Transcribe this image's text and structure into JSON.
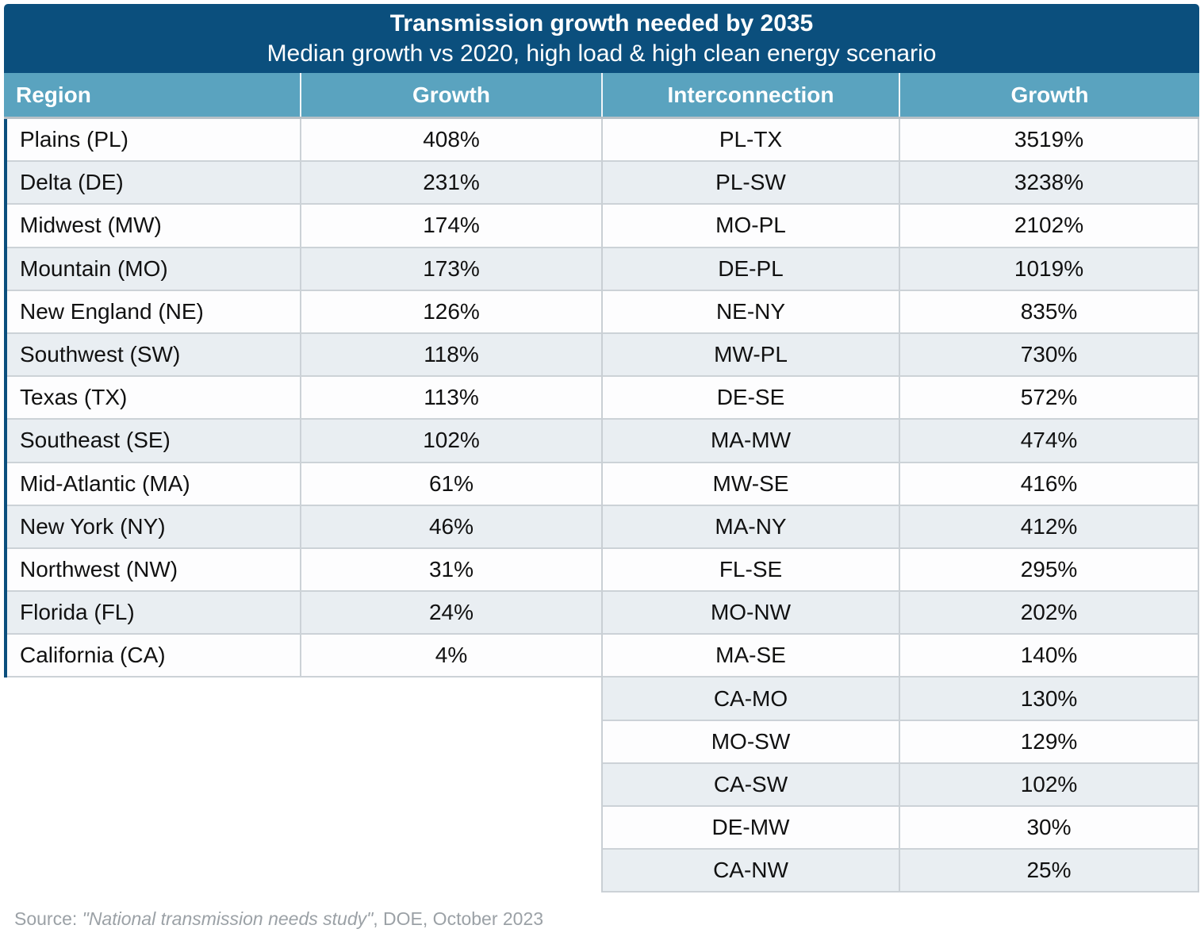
{
  "chart_data": [
    {
      "type": "table",
      "title": "Transmission growth needed by 2035",
      "subtitle": "Median growth vs 2020, high load & high clean energy scenario",
      "columns": [
        "Region",
        "Growth"
      ],
      "rows": [
        [
          "Plains (PL)",
          "408%"
        ],
        [
          "Delta (DE)",
          "231%"
        ],
        [
          "Midwest (MW)",
          "174%"
        ],
        [
          "Mountain (MO)",
          "173%"
        ],
        [
          "New England (NE)",
          "126%"
        ],
        [
          "Southwest (SW)",
          "118%"
        ],
        [
          "Texas (TX)",
          "113%"
        ],
        [
          "Southeast (SE)",
          "102%"
        ],
        [
          "Mid-Atlantic (MA)",
          "61%"
        ],
        [
          "New York (NY)",
          "46%"
        ],
        [
          "Northwest (NW)",
          "31%"
        ],
        [
          "Florida (FL)",
          "24%"
        ],
        [
          "California (CA)",
          "4%"
        ]
      ]
    },
    {
      "type": "table",
      "columns": [
        "Interconnection",
        "Growth"
      ],
      "rows": [
        [
          "PL-TX",
          "3519%"
        ],
        [
          "PL-SW",
          "3238%"
        ],
        [
          "MO-PL",
          "2102%"
        ],
        [
          "DE-PL",
          "1019%"
        ],
        [
          "NE-NY",
          "835%"
        ],
        [
          "MW-PL",
          "730%"
        ],
        [
          "DE-SE",
          "572%"
        ],
        [
          "MA-MW",
          "474%"
        ],
        [
          "MW-SE",
          "416%"
        ],
        [
          "MA-NY",
          "412%"
        ],
        [
          "FL-SE",
          "295%"
        ],
        [
          "MO-NW",
          "202%"
        ],
        [
          "MA-SE",
          "140%"
        ],
        [
          "CA-MO",
          "130%"
        ],
        [
          "MO-SW",
          "129%"
        ],
        [
          "CA-SW",
          "102%"
        ],
        [
          "DE-MW",
          "30%"
        ],
        [
          "CA-NW",
          "25%"
        ]
      ]
    }
  ],
  "source": {
    "prefix": "Source: ",
    "study": "\"National transmission needs study\"",
    "suffix": ", DOE, October 2023"
  },
  "colors": {
    "title_bar": "#0b4f7d",
    "header_row": "#5aa3bf",
    "row_alt": "#e9eef2",
    "row_white": "#fdfdfe",
    "row_border": "#ccd2d7",
    "source_text": "#9ba1a6"
  }
}
